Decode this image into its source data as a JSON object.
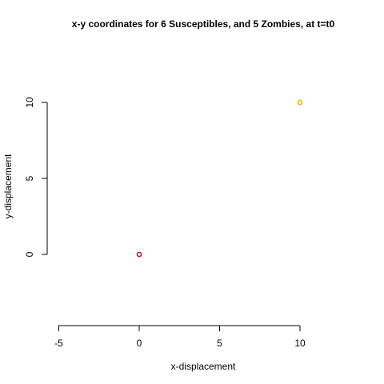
{
  "chart_data": {
    "type": "scatter",
    "title": "x-y coordinates for 6 Susceptibles, and 5 Zombies, at t=t0",
    "xlabel": "x-displacement",
    "ylabel": "y-displacement",
    "x_ticks": [
      -5,
      0,
      5,
      10
    ],
    "y_ticks": [
      0,
      5,
      10
    ],
    "xlim": [
      -5,
      10
    ],
    "ylim": [
      -4.5,
      12.5
    ],
    "grid": false,
    "series": [
      {
        "color": "#e0001b",
        "points": [
          {
            "x": 0,
            "y": 0
          }
        ]
      },
      {
        "color": "#f0b400",
        "points": [
          {
            "x": 10,
            "y": 10
          }
        ]
      }
    ]
  }
}
